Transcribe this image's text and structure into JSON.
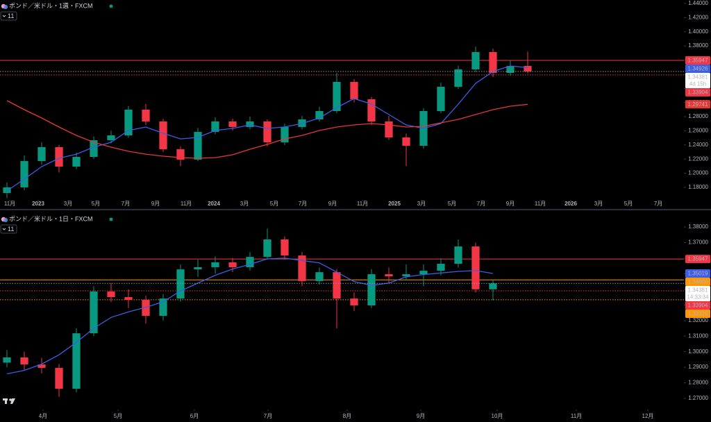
{
  "chart_data": [
    {
      "type": "candlestick",
      "title": "ポンド／米ドル・1週・FXCM",
      "indicator_count": "11",
      "countdown": "4d 15h",
      "up_color": "#089981",
      "down_color": "#f23645",
      "grid": false,
      "x": [
        1,
        2,
        3,
        4,
        5,
        6,
        7,
        8,
        9,
        10,
        11,
        12,
        13,
        14,
        15,
        16,
        17,
        18,
        19,
        20,
        21,
        22,
        23,
        24,
        25,
        26,
        27,
        28,
        29,
        30,
        31
      ],
      "open": [
        1.172,
        1.18,
        1.2172,
        1.2369,
        1.2094,
        1.2231,
        1.2467,
        1.2535,
        1.2899,
        1.2732,
        1.2339,
        1.2192,
        1.2584,
        1.2732,
        1.2654,
        1.2732,
        1.2437,
        1.2654,
        1.2761,
        1.2879,
        1.3291,
        1.3046,
        1.2732,
        1.2506,
        1.2388,
        1.2879,
        1.3222,
        1.3468,
        1.3713,
        1.3419,
        1.3517
      ],
      "high": [
        1.187,
        1.225,
        1.244,
        1.24,
        1.229,
        1.252,
        1.26,
        1.295,
        1.298,
        1.277,
        1.238,
        1.264,
        1.279,
        1.277,
        1.28,
        1.276,
        1.27,
        1.281,
        1.294,
        1.342,
        1.333,
        1.308,
        1.281,
        1.256,
        1.292,
        1.328,
        1.352,
        1.379,
        1.376,
        1.36,
        1.372
      ],
      "low": [
        1.165,
        1.176,
        1.212,
        1.201,
        1.206,
        1.22,
        1.242,
        1.25,
        1.268,
        1.23,
        1.21,
        1.217,
        1.255,
        1.26,
        1.262,
        1.238,
        1.24,
        1.262,
        1.273,
        1.285,
        1.3,
        1.268,
        1.247,
        1.21,
        1.235,
        1.285,
        1.319,
        1.343,
        1.336,
        1.338,
        1.341
      ],
      "close": [
        1.18,
        1.2172,
        1.2369,
        1.2094,
        1.2231,
        1.2467,
        1.2535,
        1.2899,
        1.2732,
        1.2339,
        1.2192,
        1.2584,
        1.2732,
        1.2654,
        1.2732,
        1.2437,
        1.2654,
        1.2761,
        1.2879,
        1.3291,
        1.3046,
        1.2732,
        1.2506,
        1.2388,
        1.2879,
        1.3222,
        1.3468,
        1.3713,
        1.3419,
        1.3517,
        1.34381
      ],
      "lines": [
        {
          "color": "#3d5ee6",
          "values": [
            1.1751,
            1.1917,
            1.2094,
            1.2212,
            1.227,
            1.2369,
            1.2437,
            1.2604,
            1.2653,
            1.2565,
            1.2486,
            1.2506,
            1.2604,
            1.2634,
            1.2683,
            1.2634,
            1.2654,
            1.2702,
            1.2781,
            1.2928,
            1.3056,
            1.2977,
            1.283,
            1.2683,
            1.2634,
            1.2702,
            1.2977,
            1.3271,
            1.3438,
            1.3517,
            1.34926
          ]
        },
        {
          "color": "#e53935",
          "values": [
            1.3026,
            1.2899,
            1.2781,
            1.2653,
            1.2535,
            1.2437,
            1.2369,
            1.231,
            1.227,
            1.2241,
            1.2221,
            1.2212,
            1.2221,
            1.2261,
            1.2339,
            1.2408,
            1.2486,
            1.2535,
            1.2604,
            1.2653,
            1.2683,
            1.2702,
            1.2683,
            1.2653,
            1.2663,
            1.2712,
            1.2761,
            1.283,
            1.2899,
            1.2948,
            1.29741
          ]
        }
      ],
      "price_lines": [
        {
          "value": 1.35947,
          "color": "#f23645",
          "style": "solid"
        },
        {
          "value": 1.33904,
          "color": "#f23645",
          "style": "dotted"
        }
      ],
      "xlim": [
        0.6,
        40
      ],
      "xticks": [
        {
          "value": 1.16,
          "label": "11月"
        },
        {
          "value": 2.8,
          "label": "2023"
        },
        {
          "value": 4.52,
          "label": "3月"
        },
        {
          "value": 6.12,
          "label": "5月"
        },
        {
          "value": 7.84,
          "label": "7月"
        },
        {
          "value": 9.56,
          "label": "9月"
        },
        {
          "value": 11.32,
          "label": "11月"
        },
        {
          "value": 12.92,
          "label": "2024"
        },
        {
          "value": 14.68,
          "label": "3月"
        },
        {
          "value": 16.4,
          "label": "5月"
        },
        {
          "value": 18.04,
          "label": "7月"
        },
        {
          "value": 19.76,
          "label": "9月"
        },
        {
          "value": 21.48,
          "label": "11月"
        },
        {
          "value": 23.32,
          "label": "2025"
        },
        {
          "value": 24.88,
          "label": "3月"
        },
        {
          "value": 26.64,
          "label": "5月"
        },
        {
          "value": 28.32,
          "label": "7月"
        },
        {
          "value": 30,
          "label": "9月"
        },
        {
          "value": 31.72,
          "label": "11月"
        },
        {
          "value": 33.48,
          "label": "2026"
        },
        {
          "value": 35.08,
          "label": "3月"
        },
        {
          "value": 36.8,
          "label": "5月"
        },
        {
          "value": 38.52,
          "label": "7月"
        }
      ],
      "ylim": [
        1.1623,
        1.4449
      ],
      "yticks": [
        {
          "value": 1.18,
          "label": "1.18000"
        },
        {
          "value": 1.2,
          "label": "1.20000"
        },
        {
          "value": 1.22,
          "label": "1.22000"
        },
        {
          "value": 1.24,
          "label": "1.24000"
        },
        {
          "value": 1.26,
          "label": "1.26000"
        },
        {
          "value": 1.28,
          "label": "1.28000"
        },
        {
          "value": 1.3,
          "label": "1.30000"
        },
        {
          "value": 1.32,
          "label": "1.32000"
        },
        {
          "value": 1.34,
          "label": "1.34000"
        },
        {
          "value": 1.36,
          "label": "1.36000"
        },
        {
          "value": 1.38,
          "label": "1.38000"
        },
        {
          "value": 1.4,
          "label": "1.40000"
        },
        {
          "value": 1.42,
          "label": "1.42000"
        },
        {
          "value": 1.44,
          "label": "1.44000"
        }
      ]
    },
    {
      "type": "candlestick",
      "title": "ポンド／米ドル・1日・FXCM",
      "indicator_count": "11",
      "countdown": "14:33:34",
      "up_color": "#089981",
      "down_color": "#f23645",
      "grid": false,
      "x": [
        1,
        2,
        3,
        4,
        5,
        6,
        7,
        8,
        9,
        10,
        11,
        12,
        13,
        14,
        15,
        16,
        17,
        18,
        19,
        20,
        21,
        22,
        23,
        24,
        25,
        26,
        27,
        28,
        29
      ],
      "open": [
        1.293,
        1.2963,
        1.2918,
        1.2896,
        1.2762,
        1.3118,
        1.3386,
        1.335,
        1.3332,
        1.323,
        1.3341,
        1.3528,
        1.3542,
        1.3573,
        1.3542,
        1.3608,
        1.372,
        1.3617,
        1.3453,
        1.351,
        1.3341,
        1.3297,
        1.3497,
        1.3483,
        1.3497,
        1.3519,
        1.3564,
        1.3675,
        1.34
      ],
      "high": [
        1.301,
        1.3,
        1.296,
        1.292,
        1.315,
        1.342,
        1.344,
        1.34,
        1.336,
        1.337,
        1.356,
        1.359,
        1.361,
        1.36,
        1.364,
        1.379,
        1.374,
        1.364,
        1.354,
        1.353,
        1.338,
        1.353,
        1.354,
        1.356,
        1.356,
        1.36,
        1.372,
        1.37,
        1.346
      ],
      "low": [
        1.29,
        1.288,
        1.286,
        1.271,
        1.274,
        1.31,
        1.332,
        1.328,
        1.318,
        1.32,
        1.332,
        1.348,
        1.35,
        1.351,
        1.352,
        1.359,
        1.359,
        1.342,
        1.343,
        1.315,
        1.326,
        1.328,
        1.344,
        1.346,
        1.342,
        1.349,
        1.354,
        1.338,
        1.333
      ],
      "close": [
        1.2963,
        1.2918,
        1.2896,
        1.2762,
        1.3118,
        1.3386,
        1.335,
        1.3332,
        1.323,
        1.3341,
        1.3528,
        1.3542,
        1.3573,
        1.3542,
        1.3608,
        1.372,
        1.3617,
        1.3453,
        1.351,
        1.3341,
        1.3297,
        1.3497,
        1.3483,
        1.3497,
        1.3519,
        1.3564,
        1.3675,
        1.34,
        1.34381
      ],
      "lines": [
        {
          "color": "#3d5ee6",
          "values": [
            1.2858,
            1.288,
            1.292,
            1.298,
            1.306,
            1.315,
            1.322,
            1.3255,
            1.3285,
            1.332,
            1.339,
            1.344,
            1.349,
            1.353,
            1.356,
            1.3595,
            1.36,
            1.3585,
            1.357,
            1.351,
            1.345,
            1.3425,
            1.344,
            1.348,
            1.3495,
            1.3505,
            1.3515,
            1.352,
            1.35019
          ]
        }
      ],
      "price_lines": [
        {
          "value": 1.35947,
          "color": "#f23645",
          "style": "solid"
        },
        {
          "value": 1.34605,
          "color": "#ff9800",
          "style": "solid"
        },
        {
          "value": 1.33904,
          "color": "#f23645",
          "style": "dotted"
        },
        {
          "value": 1.33329,
          "color": "#ff9800",
          "style": "dotted"
        }
      ],
      "xlim": [
        0.6,
        40
      ],
      "xticks": [
        {
          "value": 3.08,
          "label": "4月"
        },
        {
          "value": 7.4,
          "label": "5月"
        },
        {
          "value": 11.8,
          "label": "6月"
        },
        {
          "value": 16.04,
          "label": "7月"
        },
        {
          "value": 20.6,
          "label": "8月"
        },
        {
          "value": 24.84,
          "label": "9月"
        },
        {
          "value": 29.24,
          "label": "10月"
        },
        {
          "value": 33.8,
          "label": "11月"
        },
        {
          "value": 37.92,
          "label": "12月"
        }
      ],
      "ylim": [
        1.2629,
        1.3898
      ],
      "yticks": [
        {
          "value": 1.27,
          "label": "1.27000"
        },
        {
          "value": 1.28,
          "label": "1.28000"
        },
        {
          "value": 1.29,
          "label": "1.29000"
        },
        {
          "value": 1.3,
          "label": "1.30000"
        },
        {
          "value": 1.31,
          "label": "1.31000"
        },
        {
          "value": 1.32,
          "label": "1.32000"
        },
        {
          "value": 1.33,
          "label": "1.33000"
        },
        {
          "value": 1.34,
          "label": "1.34000"
        },
        {
          "value": 1.35,
          "label": "1.35000"
        },
        {
          "value": 1.36,
          "label": "1.36000"
        },
        {
          "value": 1.37,
          "label": "1.37000"
        },
        {
          "value": 1.38,
          "label": "1.38000"
        }
      ]
    }
  ]
}
